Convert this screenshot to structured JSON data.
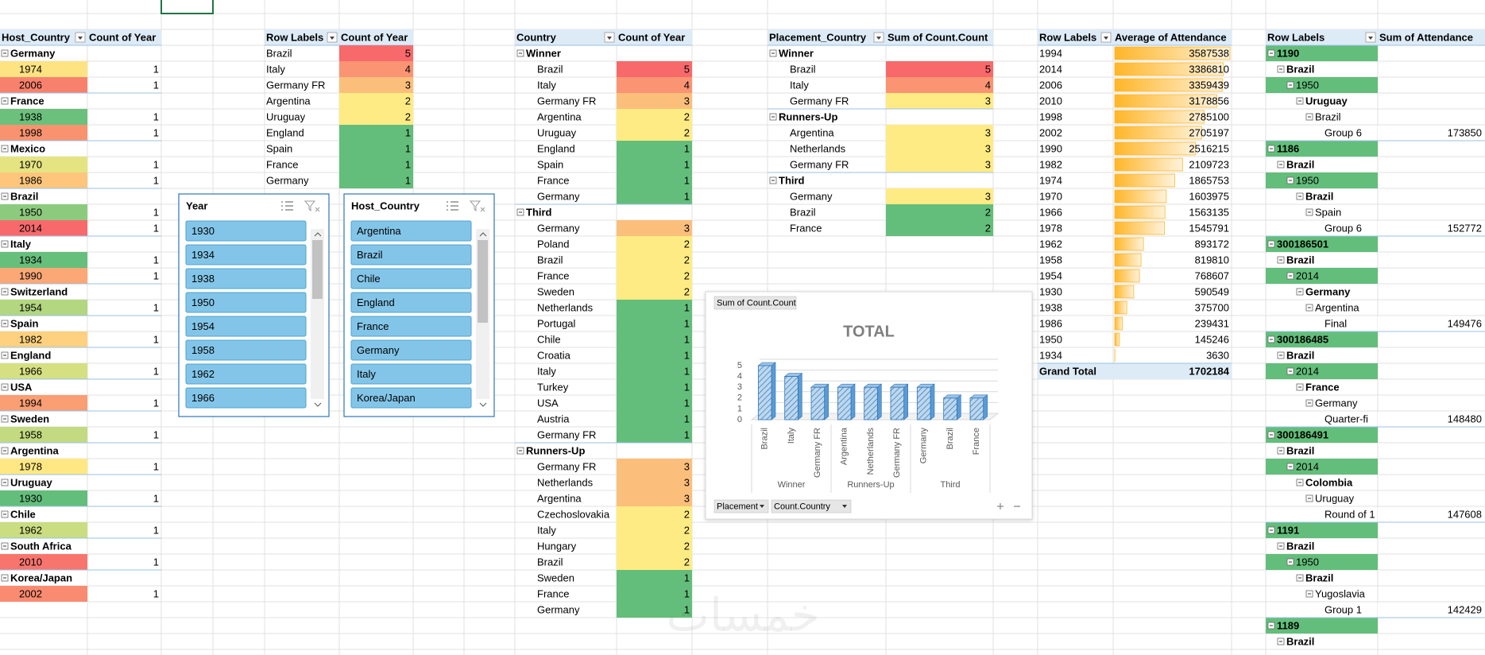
{
  "pivot_host_years": {
    "headers": [
      "Host_Country",
      "Count of Year"
    ],
    "groups": [
      {
        "name": "Germany",
        "rows": [
          {
            "year": "1974",
            "count": 1,
            "color": "#fee382"
          },
          {
            "year": "2006",
            "count": 1,
            "color": "#f8816d"
          }
        ]
      },
      {
        "name": "France",
        "rows": [
          {
            "year": "1938",
            "count": 1,
            "color": "#6bc17c"
          },
          {
            "year": "1998",
            "count": 1,
            "color": "#f9936f"
          }
        ]
      },
      {
        "name": "Mexico",
        "rows": [
          {
            "year": "1970",
            "count": 1,
            "color": "#e5e483"
          },
          {
            "year": "1986",
            "count": 1,
            "color": "#fdc67c"
          }
        ]
      },
      {
        "name": "Brazil",
        "rows": [
          {
            "year": "1950",
            "count": 1,
            "color": "#8ccb7e"
          },
          {
            "year": "2014",
            "count": 1,
            "color": "#f8696b"
          }
        ]
      },
      {
        "name": "Italy",
        "rows": [
          {
            "year": "1934",
            "count": 1,
            "color": "#67bf7c"
          },
          {
            "year": "1990",
            "count": 1,
            "color": "#fba776"
          }
        ]
      },
      {
        "name": "Switzerland",
        "rows": [
          {
            "year": "1954",
            "count": 1,
            "color": "#b3d680"
          }
        ]
      },
      {
        "name": "Spain",
        "rows": [
          {
            "year": "1982",
            "count": 1,
            "color": "#fdd17f"
          }
        ]
      },
      {
        "name": "England",
        "rows": [
          {
            "year": "1966",
            "count": 1,
            "color": "#d5e082"
          }
        ]
      },
      {
        "name": "USA",
        "rows": [
          {
            "year": "1994",
            "count": 1,
            "color": "#fa9e74"
          }
        ]
      },
      {
        "name": "Sweden",
        "rows": [
          {
            "year": "1958",
            "count": 1,
            "color": "#c3da81"
          }
        ]
      },
      {
        "name": "Argentina",
        "rows": [
          {
            "year": "1978",
            "count": 1,
            "color": "#ffe883"
          }
        ]
      },
      {
        "name": "Uruguay",
        "rows": [
          {
            "year": "1930",
            "count": 1,
            "color": "#63be7b"
          }
        ]
      },
      {
        "name": "Chile",
        "rows": [
          {
            "year": "1962",
            "count": 1,
            "color": "#cadd81"
          }
        ]
      },
      {
        "name": "South Africa",
        "rows": [
          {
            "year": "2010",
            "count": 1,
            "color": "#f8756e"
          }
        ]
      },
      {
        "name": "Korea/Japan",
        "rows": [
          {
            "year": "2002",
            "count": 1,
            "color": "#f98b70"
          }
        ]
      }
    ]
  },
  "pivot_winners": {
    "headers": [
      "Row Labels",
      "Count of Year"
    ],
    "rows": [
      {
        "label": "Brazil",
        "value": 5,
        "color": "#f8696b"
      },
      {
        "label": "Italy",
        "value": 4,
        "color": "#fa9473"
      },
      {
        "label": "Germany FR",
        "value": 3,
        "color": "#fcbf7b"
      },
      {
        "label": "Argentina",
        "value": 2,
        "color": "#ffeb84"
      },
      {
        "label": "Uruguay",
        "value": 2,
        "color": "#ffeb84"
      },
      {
        "label": "England",
        "value": 1,
        "color": "#63be7b"
      },
      {
        "label": "Spain",
        "value": 1,
        "color": "#63be7b"
      },
      {
        "label": "France",
        "value": 1,
        "color": "#63be7b"
      },
      {
        "label": "Germany",
        "value": 1,
        "color": "#63be7b"
      }
    ]
  },
  "slicers": [
    {
      "title": "Year",
      "items": [
        "1930",
        "1934",
        "1938",
        "1950",
        "1954",
        "1958",
        "1962",
        "1966"
      ]
    },
    {
      "title": "Host_Country",
      "items": [
        "Argentina",
        "Brazil",
        "Chile",
        "England",
        "France",
        "Germany",
        "Italy",
        "Korea/Japan"
      ]
    }
  ],
  "pivot_placement": {
    "headers": [
      "Country",
      "Count of Year"
    ],
    "groups": [
      {
        "name": "Winner",
        "rows": [
          {
            "label": "Brazil",
            "value": 5,
            "color": "#f8696b"
          },
          {
            "label": "Italy",
            "value": 4,
            "color": "#fa9473"
          },
          {
            "label": "Germany FR",
            "value": 3,
            "color": "#fcbf7b"
          },
          {
            "label": "Argentina",
            "value": 2,
            "color": "#ffeb84"
          },
          {
            "label": "Uruguay",
            "value": 2,
            "color": "#ffeb84"
          },
          {
            "label": "England",
            "value": 1,
            "color": "#63be7b"
          },
          {
            "label": "Spain",
            "value": 1,
            "color": "#63be7b"
          },
          {
            "label": "France",
            "value": 1,
            "color": "#63be7b"
          },
          {
            "label": "Germany",
            "value": 1,
            "color": "#63be7b"
          }
        ]
      },
      {
        "name": "Third",
        "rows": [
          {
            "label": "Germany",
            "value": 3,
            "color": "#fcbf7b"
          },
          {
            "label": "Poland",
            "value": 2,
            "color": "#ffeb84"
          },
          {
            "label": "Brazil",
            "value": 2,
            "color": "#ffeb84"
          },
          {
            "label": "France",
            "value": 2,
            "color": "#ffeb84"
          },
          {
            "label": "Sweden",
            "value": 2,
            "color": "#ffeb84"
          },
          {
            "label": "Netherlands",
            "value": 1,
            "color": "#63be7b"
          },
          {
            "label": "Portugal",
            "value": 1,
            "color": "#63be7b"
          },
          {
            "label": "Chile",
            "value": 1,
            "color": "#63be7b"
          },
          {
            "label": "Croatia",
            "value": 1,
            "color": "#63be7b"
          },
          {
            "label": "Italy",
            "value": 1,
            "color": "#63be7b"
          },
          {
            "label": "Turkey",
            "value": 1,
            "color": "#63be7b"
          },
          {
            "label": "USA",
            "value": 1,
            "color": "#63be7b"
          },
          {
            "label": "Austria",
            "value": 1,
            "color": "#63be7b"
          },
          {
            "label": "Germany FR",
            "value": 1,
            "color": "#63be7b"
          }
        ]
      },
      {
        "name": "Runners-Up",
        "rows": [
          {
            "label": "Germany FR",
            "value": 3,
            "color": "#fcbf7b"
          },
          {
            "label": "Netherlands",
            "value": 3,
            "color": "#fcbf7b"
          },
          {
            "label": "Argentina",
            "value": 3,
            "color": "#fcbf7b"
          },
          {
            "label": "Czechoslovakia",
            "value": 2,
            "color": "#ffeb84"
          },
          {
            "label": "Italy",
            "value": 2,
            "color": "#ffeb84"
          },
          {
            "label": "Hungary",
            "value": 2,
            "color": "#ffeb84"
          },
          {
            "label": "Brazil",
            "value": 2,
            "color": "#ffeb84"
          },
          {
            "label": "Sweden",
            "value": 1,
            "color": "#63be7b"
          },
          {
            "label": "France",
            "value": 1,
            "color": "#63be7b"
          },
          {
            "label": "Germany",
            "value": 1,
            "color": "#63be7b"
          }
        ]
      }
    ]
  },
  "pivot_placement_sum": {
    "headers": [
      "Placement_Country",
      "Sum of Count.Count"
    ],
    "groups": [
      {
        "name": "Winner",
        "rows": [
          {
            "label": "Brazil",
            "value": 5,
            "color": "#f8696b"
          },
          {
            "label": "Italy",
            "value": 4,
            "color": "#fa9473"
          },
          {
            "label": "Germany FR",
            "value": 3,
            "color": "#ffeb84"
          }
        ]
      },
      {
        "name": "Runners-Up",
        "rows": [
          {
            "label": "Argentina",
            "value": 3,
            "color": "#ffeb84"
          },
          {
            "label": "Netherlands",
            "value": 3,
            "color": "#ffeb84"
          },
          {
            "label": "Germany FR",
            "value": 3,
            "color": "#ffeb84"
          }
        ]
      },
      {
        "name": "Third",
        "rows": [
          {
            "label": "Germany",
            "value": 3,
            "color": "#ffeb84"
          },
          {
            "label": "Brazil",
            "value": 2,
            "color": "#63be7b"
          },
          {
            "label": "France",
            "value": 2,
            "color": "#63be7b"
          }
        ]
      }
    ]
  },
  "pivot_attendance": {
    "headers": [
      "Row Labels",
      "Average of Attendance"
    ],
    "bar_color": "#ffb628",
    "rows": [
      {
        "label": "1994",
        "value": 3587538
      },
      {
        "label": "2014",
        "value": 3386810
      },
      {
        "label": "2006",
        "value": 3359439
      },
      {
        "label": "2010",
        "value": 3178856
      },
      {
        "label": "1998",
        "value": 2785100
      },
      {
        "label": "2002",
        "value": 2705197
      },
      {
        "label": "1990",
        "value": 2516215
      },
      {
        "label": "1982",
        "value": 2109723
      },
      {
        "label": "1974",
        "value": 1865753
      },
      {
        "label": "1970",
        "value": 1603975
      },
      {
        "label": "1966",
        "value": 1563135
      },
      {
        "label": "1978",
        "value": 1545791
      },
      {
        "label": "1962",
        "value": 893172
      },
      {
        "label": "1958",
        "value": 819810
      },
      {
        "label": "1954",
        "value": 768607
      },
      {
        "label": "1930",
        "value": 590549
      },
      {
        "label": "1938",
        "value": 375700
      },
      {
        "label": "1986",
        "value": 239431
      },
      {
        "label": "1950",
        "value": 145246
      },
      {
        "label": "1934",
        "value": 3630
      }
    ],
    "total_label": "Grand Total",
    "total": 1702184
  },
  "pivot_matches": {
    "headers": [
      "Row Labels",
      "Sum of Attendance"
    ],
    "items": [
      {
        "id": "1190",
        "country": "Brazil",
        "year": "1950",
        "home": "Uruguay",
        "away": "Brazil",
        "round": "Group 6",
        "attendance": 173850
      },
      {
        "id": "1186",
        "country": "Brazil",
        "year": "1950",
        "home": "Brazil",
        "away": "Spain",
        "round": "Group 6",
        "attendance": 152772
      },
      {
        "id": "300186501",
        "country": "Brazil",
        "year": "2014",
        "home": "Germany",
        "away": "Argentina",
        "round": "Final",
        "attendance": 149476
      },
      {
        "id": "300186485",
        "country": "Brazil",
        "year": "2014",
        "home": "France",
        "away": "Germany",
        "round": "Quarter-fi",
        "attendance": 148480
      },
      {
        "id": "300186491",
        "country": "Brazil",
        "year": "2014",
        "home": "Colombia",
        "away": "Uruguay",
        "round": "Round of 1",
        "attendance": 147608
      },
      {
        "id": "1191",
        "country": "Brazil",
        "year": "1950",
        "home": "Brazil",
        "away": "Yugoslavia",
        "round": "Group 1",
        "attendance": 142429
      },
      {
        "id": "1189",
        "country": "Brazil"
      }
    ]
  },
  "chart_data": {
    "type": "bar",
    "title": "TOTAL",
    "field_buttons": [
      "Sum of Count.Count",
      "Placement",
      "Count.Country"
    ],
    "color": "#9dc3e6",
    "ylim": [
      0,
      5
    ],
    "yticks": [
      0,
      1,
      2,
      3,
      4,
      5
    ],
    "grid": true,
    "groups": [
      {
        "name": "Winner",
        "categories": [
          "Brazil",
          "Italy",
          "Germany FR"
        ],
        "values": [
          5,
          4,
          3
        ]
      },
      {
        "name": "Runners-Up",
        "categories": [
          "Argentina",
          "Netherlands",
          "Germany FR"
        ],
        "values": [
          3,
          3,
          3
        ]
      },
      {
        "name": "Third",
        "categories": [
          "Germany",
          "Brazil",
          "France"
        ],
        "values": [
          3,
          2,
          2
        ]
      }
    ]
  },
  "watermark": "خمسات"
}
